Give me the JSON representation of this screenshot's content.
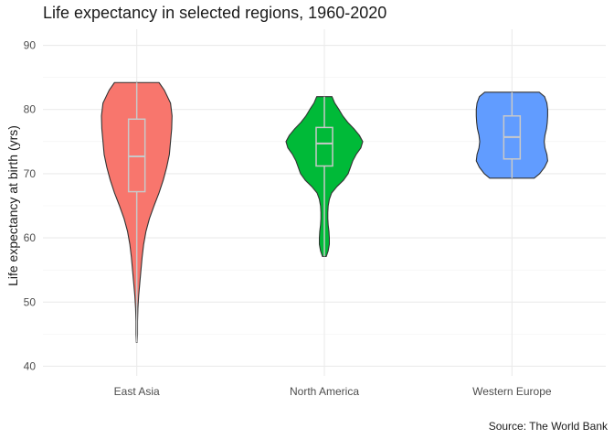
{
  "chart_data": {
    "type": "violin",
    "title": "Life expectancy in selected regions, 1960-2020",
    "caption": "Source: The World Bank",
    "xlabel": "",
    "ylabel": "Life expectancy at birth (yrs)",
    "ylim": [
      38.5,
      92.5
    ],
    "yticks": [
      40,
      50,
      60,
      70,
      80,
      90
    ],
    "grid": true,
    "legend": "none",
    "categories": [
      "East Asia",
      "North America",
      "Western Europe"
    ],
    "series": [
      {
        "category": "East Asia",
        "color": "#F8766D",
        "min": 43.7,
        "max": 84.2,
        "box": {
          "q1": 67.2,
          "median": 72.7,
          "q3": 78.5,
          "whisker_low": 43.7,
          "whisker_high": 84.2
        },
        "density": [
          [
            43.7,
            0.01
          ],
          [
            45,
            0.02
          ],
          [
            47,
            0.02
          ],
          [
            49,
            0.03
          ],
          [
            51,
            0.05
          ],
          [
            53,
            0.08
          ],
          [
            55,
            0.11
          ],
          [
            57,
            0.14
          ],
          [
            59,
            0.18
          ],
          [
            61,
            0.24
          ],
          [
            63,
            0.33
          ],
          [
            65,
            0.45
          ],
          [
            67,
            0.58
          ],
          [
            69,
            0.69
          ],
          [
            71,
            0.78
          ],
          [
            73,
            0.85
          ],
          [
            75,
            0.88
          ],
          [
            77,
            0.91
          ],
          [
            79,
            0.92
          ],
          [
            81,
            0.88
          ],
          [
            83,
            0.72
          ],
          [
            84.2,
            0.58
          ]
        ]
      },
      {
        "category": "North America",
        "color": "#00BA38",
        "min": 57.1,
        "max": 82.0,
        "box": {
          "q1": 71.2,
          "median": 74.7,
          "q3": 77.2,
          "whisker_low": 57.1,
          "whisker_high": 82.0
        },
        "density": [
          [
            57.1,
            0.05
          ],
          [
            58,
            0.1
          ],
          [
            59,
            0.13
          ],
          [
            60,
            0.13
          ],
          [
            61,
            0.12
          ],
          [
            62,
            0.1
          ],
          [
            63,
            0.09
          ],
          [
            64,
            0.09
          ],
          [
            65,
            0.1
          ],
          [
            66,
            0.13
          ],
          [
            67,
            0.19
          ],
          [
            68,
            0.33
          ],
          [
            69,
            0.5
          ],
          [
            70,
            0.62
          ],
          [
            71,
            0.68
          ],
          [
            72,
            0.74
          ],
          [
            73,
            0.83
          ],
          [
            74,
            0.95
          ],
          [
            75,
            1.0
          ],
          [
            76,
            0.91
          ],
          [
            77,
            0.77
          ],
          [
            78,
            0.61
          ],
          [
            79,
            0.48
          ],
          [
            80,
            0.38
          ],
          [
            81,
            0.27
          ],
          [
            82,
            0.2
          ]
        ]
      },
      {
        "category": "Western Europe",
        "color": "#619CFF",
        "min": 69.3,
        "max": 82.7,
        "box": {
          "q1": 72.3,
          "median": 75.7,
          "q3": 79.0,
          "whisker_low": 69.3,
          "whisker_high": 82.7
        },
        "density": [
          [
            69.3,
            0.58
          ],
          [
            70,
            0.72
          ],
          [
            71,
            0.85
          ],
          [
            72,
            0.93
          ],
          [
            73,
            0.91
          ],
          [
            74,
            0.86
          ],
          [
            75,
            0.84
          ],
          [
            76,
            0.86
          ],
          [
            77,
            0.9
          ],
          [
            78,
            0.92
          ],
          [
            79,
            0.93
          ],
          [
            80,
            0.93
          ],
          [
            81,
            0.91
          ],
          [
            82,
            0.85
          ],
          [
            82.7,
            0.71
          ]
        ]
      }
    ]
  }
}
